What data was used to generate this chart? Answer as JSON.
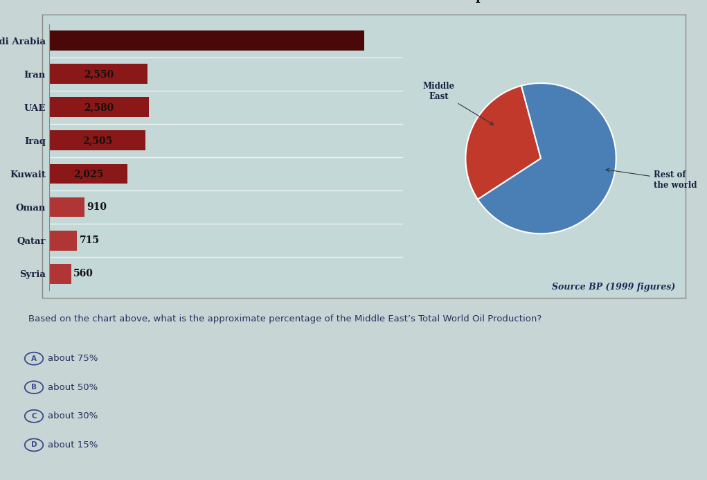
{
  "bar_countries": [
    "Saudi Arabia",
    "Iran",
    "UAE",
    "Iraq",
    "Kuwait",
    "Oman",
    "Qatar",
    "Syria"
  ],
  "bar_values": [
    8200,
    2550,
    2580,
    2505,
    2025,
    910,
    715,
    560
  ],
  "bar_labels": [
    "",
    "2,550",
    "2,580",
    "2,505",
    "2,025",
    "910",
    "715",
    "560"
  ],
  "bar_color_saudi": "#4a0808",
  "bar_color_large": "#8b1818",
  "bar_color_small": "#b03535",
  "pie_values": [
    30,
    70
  ],
  "pie_colors": [
    "#c0392b",
    "#4a7fb5"
  ],
  "pie_title": "Total world production",
  "source_text": "Source BP (1999 figures)",
  "question_text": "Based on the chart above, what is the approximate percentage of the Middle East’s Total World Oil Production?",
  "answer_a": "about 75%",
  "answer_b": "about 50%",
  "answer_c": "about 30%",
  "answer_d": "about 15%",
  "bg_color": "#c8d5d5",
  "chart_bg": "#c5d8d8"
}
